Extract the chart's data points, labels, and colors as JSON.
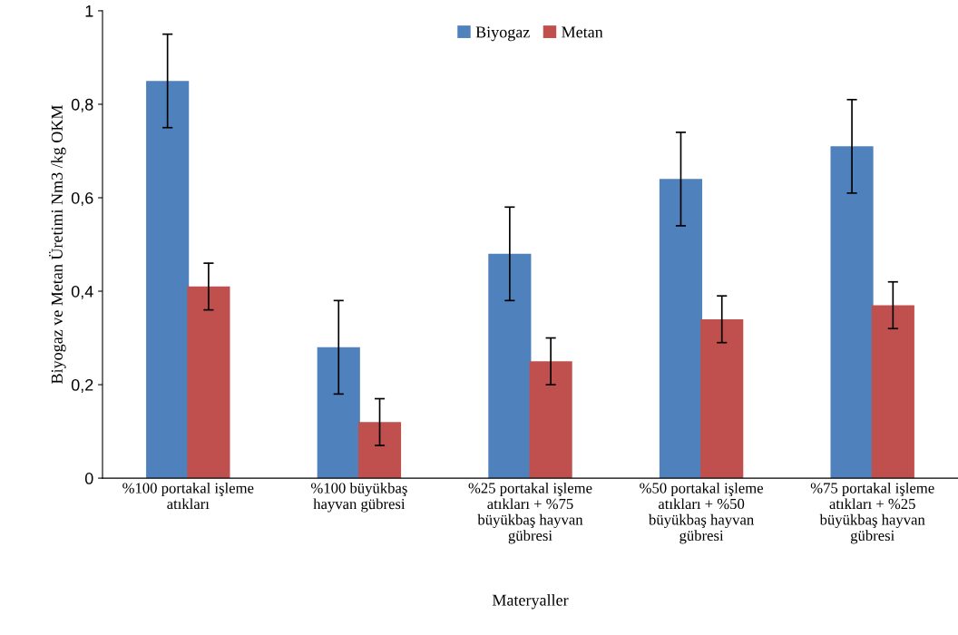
{
  "chart_data": {
    "type": "bar",
    "xlabel": "Materyaller",
    "ylabel": "Biyogaz ve Metan Üretimi Nm3 /kg OKM",
    "categories": [
      "%100 portakal işleme\natıkları",
      "%100 büyükbaş\nhayvan gübresi",
      "%25 portakal işleme\natıkları + %75\nbüyükbaş hayvan\ngübresi",
      "%50 portakal işleme\natıkları + %50\nbüyükbaş hayvan\ngübresi",
      "%75 portakal işleme\natıkları + %25\nbüyükbaş hayvan\ngübresi"
    ],
    "series": [
      {
        "name": "Biyogaz",
        "color": "#4f81bd",
        "values": [
          0.85,
          0.28,
          0.48,
          0.64,
          0.71
        ],
        "errors": [
          0.1,
          0.1,
          0.1,
          0.1,
          0.1
        ]
      },
      {
        "name": "Metan",
        "color": "#c0504d",
        "values": [
          0.41,
          0.12,
          0.25,
          0.34,
          0.37
        ],
        "errors": [
          0.05,
          0.05,
          0.05,
          0.05,
          0.05
        ]
      }
    ],
    "ylim": [
      0,
      1
    ],
    "yticks": [
      0,
      {
        "value": 0.2,
        "label": "0,2"
      },
      {
        "value": 0.4,
        "label": "0,4"
      },
      {
        "value": 0.6,
        "label": "0,6"
      },
      {
        "value": 0.8,
        "label": "0,8"
      },
      1
    ],
    "grid": false,
    "legend": "top"
  }
}
